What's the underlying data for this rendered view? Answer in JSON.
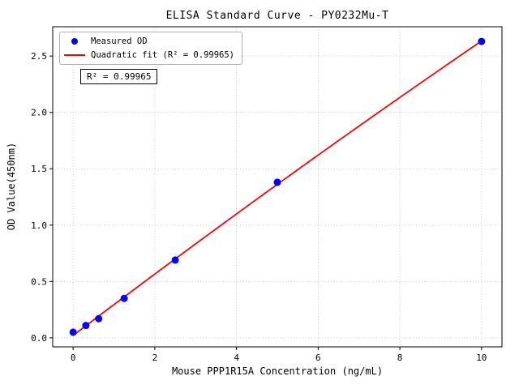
{
  "chart_data": {
    "type": "scatter",
    "title": "ELISA Standard Curve - PY0232Mu-T",
    "xlabel": "Mouse PPP1R15A Concentration (ng/mL)",
    "ylabel": "OD Value(450nm)",
    "xlim": [
      -0.5,
      10.5
    ],
    "ylim": [
      -0.08,
      2.76
    ],
    "xticks": [
      0,
      2,
      4,
      6,
      8,
      10
    ],
    "xtick_labels": [
      "0",
      "2",
      "4",
      "6",
      "8",
      "10"
    ],
    "yticks": [
      0.0,
      0.5,
      1.0,
      1.5,
      2.0,
      2.5
    ],
    "ytick_labels": [
      "0.0",
      "0.5",
      "1.0",
      "1.5",
      "2.0",
      "2.5"
    ],
    "grid": true,
    "grid_style": "dotted",
    "legend_position": "upper left",
    "annotation": "R² = 0.99965",
    "colors": {
      "scatter": "#0000ff",
      "fit_line": "#ff0000",
      "grid": "#b8b8b8"
    },
    "series": [
      {
        "name": "Measured OD",
        "type": "scatter",
        "color": "#0000ff",
        "x": [
          0,
          0.313,
          0.625,
          1.25,
          2.5,
          5,
          10
        ],
        "y": [
          0.05,
          0.11,
          0.17,
          0.35,
          0.69,
          1.38,
          2.63
        ]
      },
      {
        "name": "Quadratic fit (R² = 0.99965)",
        "type": "line",
        "color": "#ff0000",
        "fit": "quadratic",
        "coefficients": [
          0.0215,
          0.2749,
          -0.00137
        ],
        "x_start": 0,
        "x_end": 10
      }
    ]
  }
}
